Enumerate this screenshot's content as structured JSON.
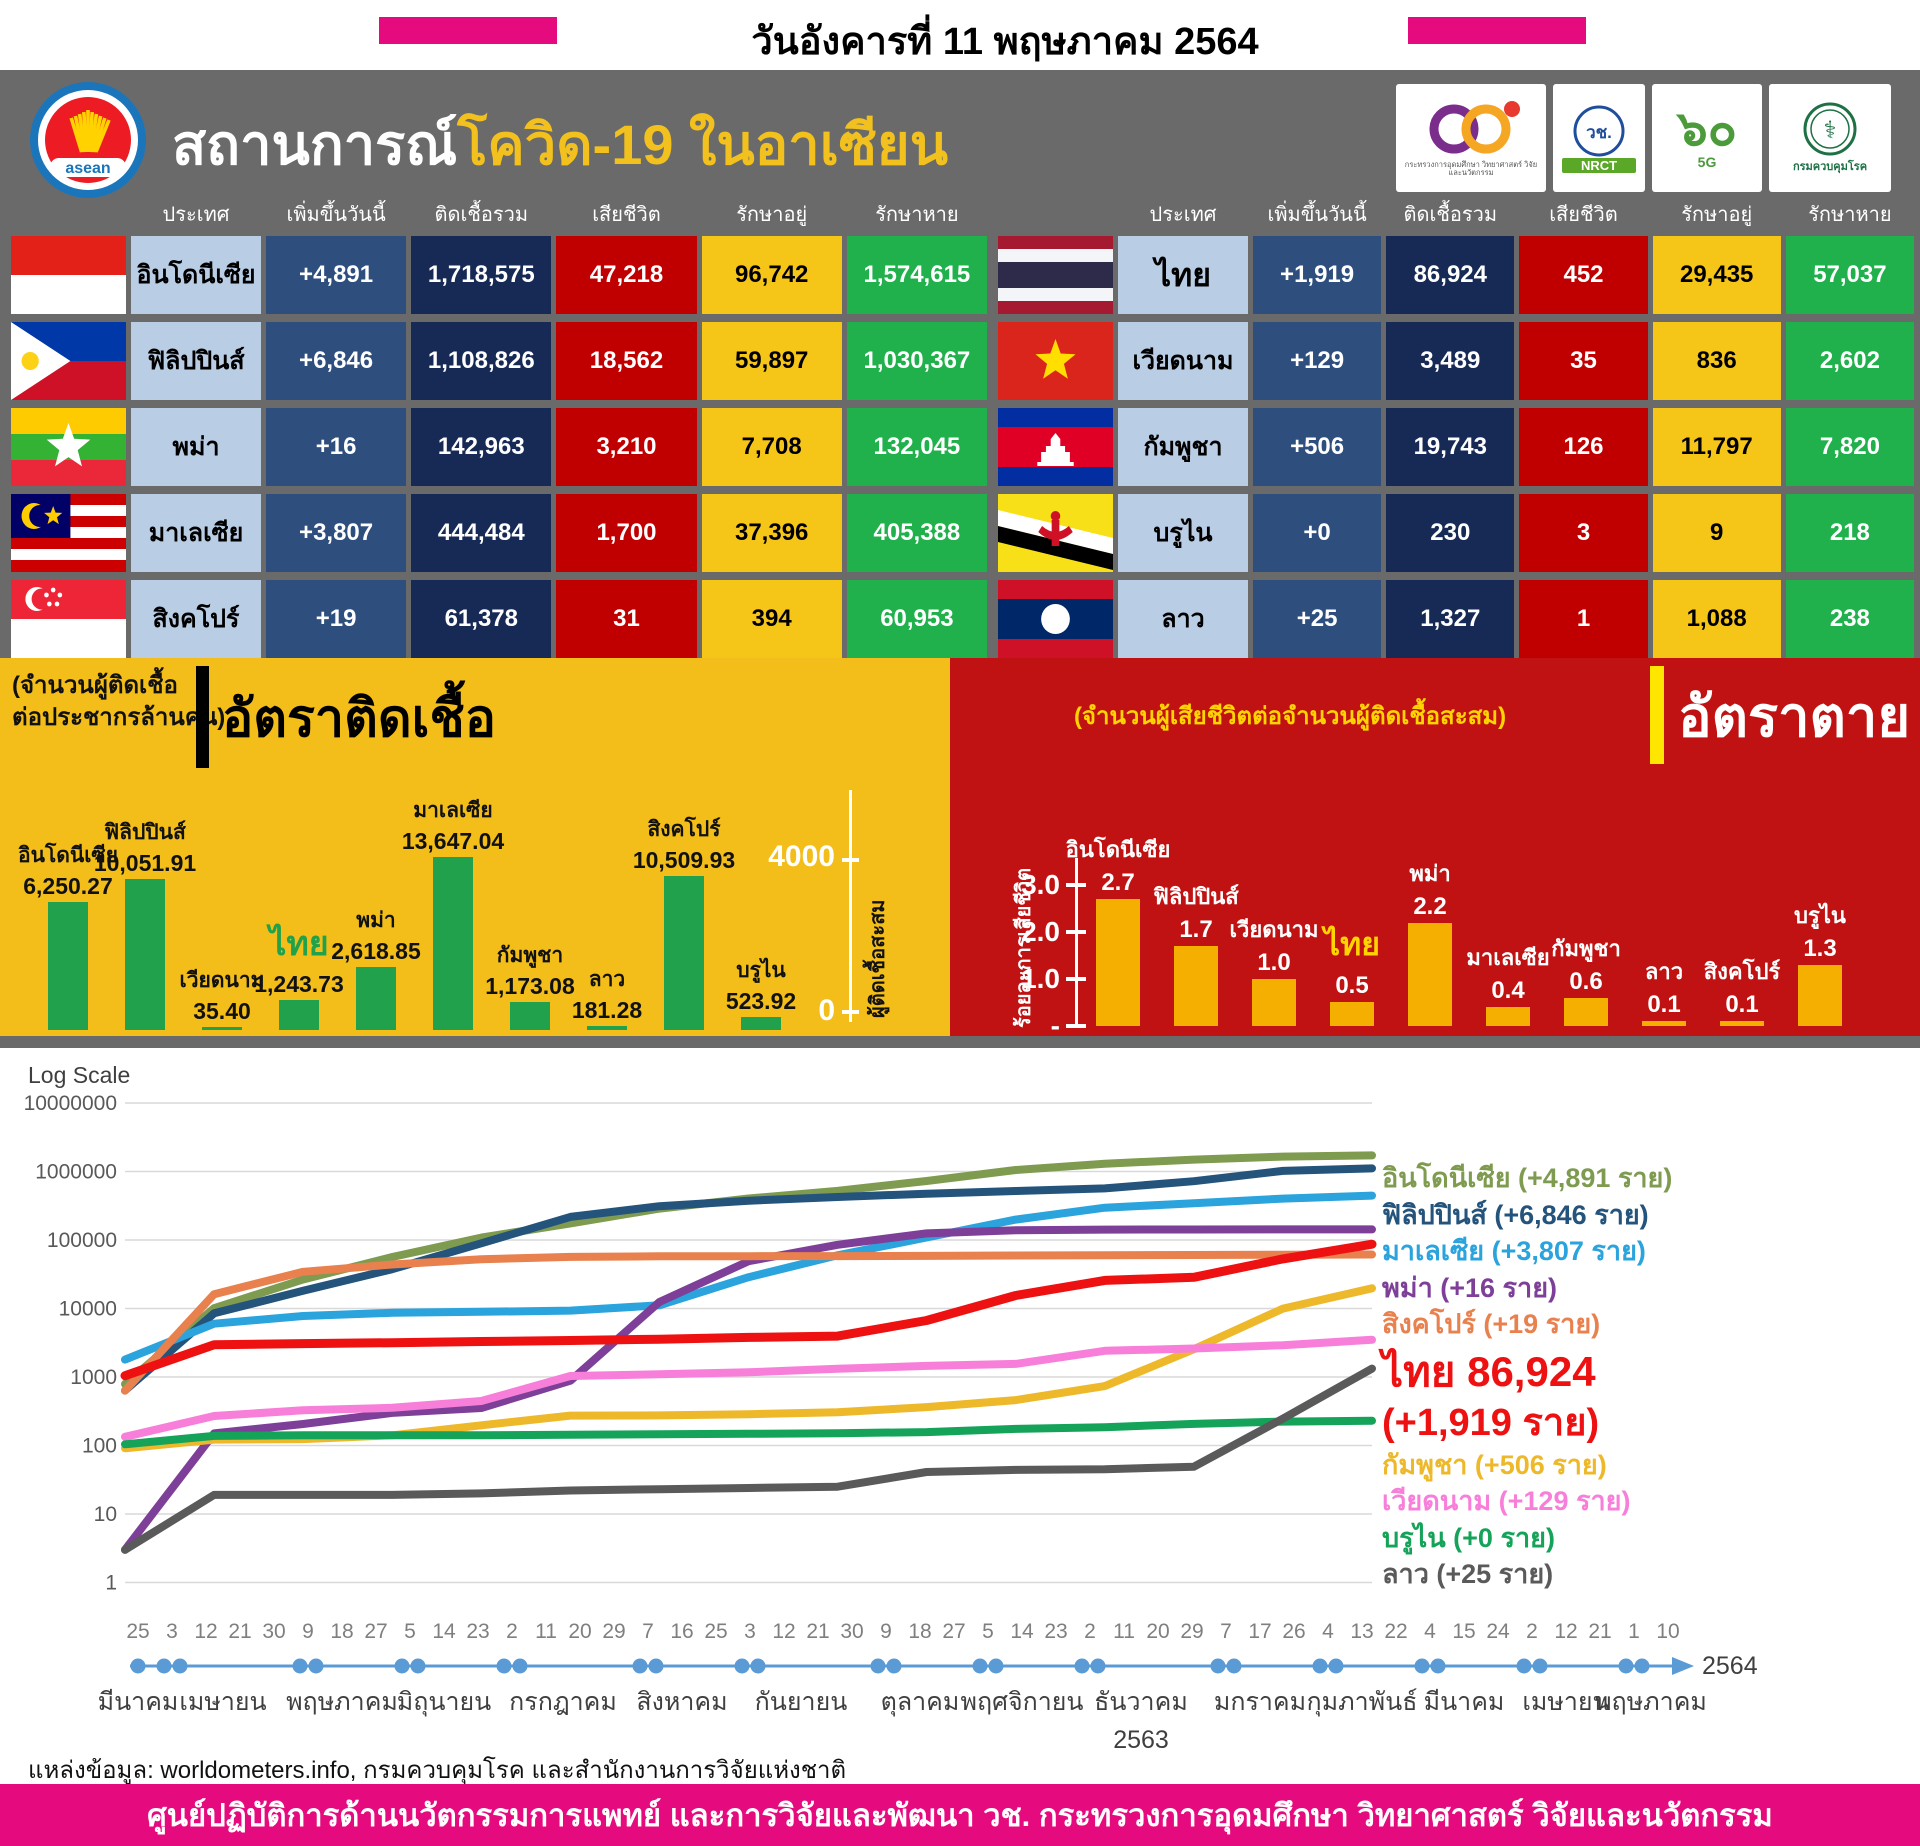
{
  "banner": {
    "date": "วันอังคารที่ 11 พฤษภาคม 2564"
  },
  "header": {
    "title_white": "สถานการณ์",
    "title_accent": "โควิด-19 ในอาเซียน",
    "asean_text": "asean",
    "logos": [
      {
        "id": "mhesi60",
        "title": "60",
        "caption": "กระทรวงการอุดมศึกษา วิทยาศาสตร์ วิจัยและนวัตกรรม"
      },
      {
        "id": "nrct",
        "title": "วช.",
        "caption": "NRCT"
      },
      {
        "id": "sixty5g",
        "title": "๖๐",
        "caption": "5G"
      },
      {
        "id": "moph",
        "title": "⚕",
        "caption": "กรมควบคุมโรค"
      }
    ]
  },
  "table": {
    "columns": [
      "ประเทศ",
      "เพิ่มขึ้นวันนี้",
      "ติดเชื้อรวม",
      "เสียชีวิต",
      "รักษาอยู่",
      "รักษาหาย"
    ],
    "left": [
      {
        "flag": "indonesia",
        "country": "อินโดนีเซีย",
        "new_today": "+4,891",
        "total": "1,718,575",
        "deaths": "47,218",
        "active": "96,742",
        "recovered": "1,574,615"
      },
      {
        "flag": "philippines",
        "country": "ฟิลิปปินส์",
        "new_today": "+6,846",
        "total": "1,108,826",
        "deaths": "18,562",
        "active": "59,897",
        "recovered": "1,030,367"
      },
      {
        "flag": "myanmar",
        "country": "พม่า",
        "new_today": "+16",
        "total": "142,963",
        "deaths": "3,210",
        "active": "7,708",
        "recovered": "132,045"
      },
      {
        "flag": "malaysia",
        "country": "มาเลเซีย",
        "new_today": "+3,807",
        "total": "444,484",
        "deaths": "1,700",
        "active": "37,396",
        "recovered": "405,388"
      },
      {
        "flag": "singapore",
        "country": "สิงคโปร์",
        "new_today": "+19",
        "total": "61,378",
        "deaths": "31",
        "active": "394",
        "recovered": "60,953"
      }
    ],
    "right": [
      {
        "flag": "thailand",
        "country": "ไทย",
        "big": true,
        "new_today": "+1,919",
        "total": "86,924",
        "deaths": "452",
        "active": "29,435",
        "recovered": "57,037"
      },
      {
        "flag": "vietnam",
        "country": "เวียดนาม",
        "new_today": "+129",
        "total": "3,489",
        "deaths": "35",
        "active": "836",
        "recovered": "2,602"
      },
      {
        "flag": "cambodia",
        "country": "กัมพูชา",
        "new_today": "+506",
        "total": "19,743",
        "deaths": "126",
        "active": "11,797",
        "recovered": "7,820"
      },
      {
        "flag": "brunei",
        "country": "บรูไน",
        "new_today": "+0",
        "total": "230",
        "deaths": "3",
        "active": "9",
        "recovered": "218"
      },
      {
        "flag": "laos",
        "country": "ลาว",
        "new_today": "+25",
        "total": "1,327",
        "deaths": "1",
        "active": "1,088",
        "recovered": "238"
      }
    ]
  },
  "chart_data": [
    {
      "type": "bar",
      "title": "อัตราติดเชื้อ",
      "subtitle": "(จำนวนผู้ติดเชื้อต่อประชากรล้านคน)",
      "subtitle_lines": [
        "(จำนวนผู้ติดเชื้อ",
        "ต่อประชากรล้านคน)"
      ],
      "categories": [
        "อินโดนีเซีย",
        "ฟิลิปปินส์",
        "เวียดนาม",
        "ไทย",
        "พม่า",
        "มาเลเซีย",
        "กัมพูชา",
        "ลาว",
        "สิงคโปร์",
        "บรูไน"
      ],
      "values": [
        6250.27,
        10051.91,
        35.4,
        1243.73,
        2618.85,
        13647.04,
        1173.08,
        181.28,
        10509.93,
        523.92
      ],
      "labels": [
        "6,250.27",
        "10,051.91",
        "35.40",
        "1,243.73",
        "2,618.85",
        "13,647.04",
        "1,173.08",
        "181.28",
        "10,509.93",
        "523.92"
      ],
      "highlight_category": "ไทย",
      "bar_color": "#21A14B",
      "background": "#F3BE19",
      "secondary_axis": {
        "ticks": [
          "4000",
          "0"
        ],
        "label": "ผู้ติดเชื้อสะสม"
      }
    },
    {
      "type": "bar",
      "title": "อัตราตาย",
      "subtitle": "(จำนวนผู้เสียชีวิตต่อจำนวนผู้ติดเชื้อสะสม)",
      "ylabel": "ร้อยละการเสียชีวิต",
      "yticks": [
        "3.0",
        "2.0",
        "1.0",
        "-"
      ],
      "ylim": [
        0,
        3.5
      ],
      "categories": [
        "อินโดนีเซีย",
        "ฟิลิปปินส์",
        "เวียดนาม",
        "ไทย",
        "พม่า",
        "มาเลเซีย",
        "กัมพูชา",
        "ลาว",
        "สิงคโปร์",
        "บรูไน"
      ],
      "values": [
        2.7,
        1.7,
        1.0,
        0.5,
        2.2,
        0.4,
        0.6,
        0.1,
        0.1,
        1.3
      ],
      "labels": [
        "2.7",
        "1.7",
        "1.0",
        "0.5",
        "2.2",
        "0.4",
        "0.6",
        "0.1",
        "0.1",
        "1.3"
      ],
      "highlight_category": "ไทย",
      "bar_color": "#F4AF00",
      "background": "#C01212"
    },
    {
      "type": "line",
      "title": "Log Scale",
      "y_scale": "log",
      "ylim": [
        1,
        10000000
      ],
      "y_ticks": [
        "10000000",
        "1000000",
        "100000",
        "10000",
        "1000",
        "100",
        "10",
        "1"
      ],
      "x_day_ticks": [
        "25",
        "3",
        "12",
        "21",
        "30",
        "9",
        "18",
        "27",
        "5",
        "14",
        "23",
        "2",
        "11",
        "20",
        "29",
        "7",
        "16",
        "25",
        "3",
        "12",
        "21",
        "30",
        "9",
        "18",
        "27",
        "5",
        "14",
        "23",
        "2",
        "11",
        "20",
        "29",
        "7",
        "17",
        "26",
        "4",
        "13",
        "22",
        "4",
        "15",
        "24",
        "2",
        "12",
        "21",
        "1",
        "10"
      ],
      "months": [
        {
          "label": "มีนาคม",
          "from": 0,
          "to": 0
        },
        {
          "label": "เมษายน",
          "from": 1,
          "to": 4
        },
        {
          "label": "พฤษภาคม",
          "from": 5,
          "to": 7
        },
        {
          "label": "มิถุนายน",
          "from": 8,
          "to": 10
        },
        {
          "label": "กรกฎาคม",
          "from": 11,
          "to": 14
        },
        {
          "label": "สิงหาคม",
          "from": 15,
          "to": 17
        },
        {
          "label": "กันยายน",
          "from": 18,
          "to": 21
        },
        {
          "label": "ตุลาคม",
          "from": 22,
          "to": 24
        },
        {
          "label": "พฤศจิกายน",
          "from": 25,
          "to": 27
        },
        {
          "label": "ธันวาคม",
          "from": 28,
          "to": 31,
          "year": "2563"
        },
        {
          "label": "มกราคม",
          "from": 32,
          "to": 34
        },
        {
          "label": "กุมภาพันธ์",
          "from": 35,
          "to": 37
        },
        {
          "label": "มีนาคม",
          "from": 38,
          "to": 40
        },
        {
          "label": "เมษายน",
          "from": 41,
          "to": 43
        },
        {
          "label": "พฤษภาคม",
          "from": 44,
          "to": 45
        }
      ],
      "year_end": "2564",
      "series": [
        {
          "name": "อินโดนีเซีย",
          "color": "#7E9B50",
          "legend": "อินโดนีเซีย (+4,891  ราย)",
          "values": [
            790,
            10100,
            26500,
            56400,
            108400,
            174800,
            287000,
            404000,
            522600,
            727000,
            1051000,
            1298000,
            1492000,
            1651000,
            1718575
          ]
        },
        {
          "name": "ฟิลิปปินส์",
          "color": "#24537B",
          "legend": "ฟิลิปปินส์ (+6,846 ราย)",
          "values": [
            636,
            8500,
            18100,
            37500,
            89400,
            217400,
            311700,
            375200,
            424300,
            474000,
            519600,
            566400,
            721900,
            1020000,
            1108826
          ]
        },
        {
          "name": "มาเลเซีย",
          "color": "#2BA3DC",
          "legend": "มาเลเซีย (+3,807 ราย)",
          "values": [
            1796,
            6002,
            7762,
            8640,
            8964,
            9306,
            11135,
            28640,
            59817,
            108615,
            198208,
            295951,
            342885,
            401593,
            444484
          ]
        },
        {
          "name": "พม่า",
          "color": "#7D3F98",
          "legend": "พม่า (+16 ราย)",
          "values": [
            3,
            150,
            206,
            299,
            353,
            882,
            12425,
            49072,
            85205,
            124630,
            138368,
            141841,
            142466,
            142800,
            142963
          ]
        },
        {
          "name": "สิงคโปร์",
          "color": "#E8814D",
          "legend": "สิงคโปร์ (+19 ราย)",
          "values": [
            631,
            16169,
            34366,
            43907,
            52512,
            56717,
            57784,
            57994,
            58183,
            58569,
            59425,
            59925,
            60347,
            61051,
            61378
          ]
        },
        {
          "name": "ไทย",
          "color": "#EE1111",
          "legend": [
            "ไทย 86,924",
            "(+1,919 ราย)"
          ],
          "legend_big": true,
          "values": [
            1045,
            2954,
            3077,
            3171,
            3298,
            3410,
            3564,
            3780,
            3961,
            6690,
            15465,
            25692,
            28577,
            53022,
            86924
          ]
        },
        {
          "name": "กัมพูชา",
          "color": "#EDB829",
          "legend": "กัมพูชา (+506 ราย)",
          "values": [
            91,
            122,
            124,
            141,
            197,
            273,
            275,
            286,
            306,
            363,
            460,
            737,
            2546,
            9975,
            19743
          ]
        },
        {
          "name": "เวียดนาม",
          "color": "#F77FD9",
          "legend": "เวียดนาม (+129 ราย)",
          "values": [
            134,
            270,
            327,
            355,
            446,
            1034,
            1094,
            1173,
            1316,
            1454,
            1551,
            2412,
            2603,
            2910,
            3489
          ]
        },
        {
          "name": "บรูไน",
          "color": "#14A359",
          "legend": "บรูไน (+0 ราย)",
          "values": [
            104,
            138,
            141,
            141,
            141,
            144,
            146,
            148,
            151,
            157,
            175,
            185,
            207,
            223,
            230
          ]
        },
        {
          "name": "ลาว",
          "color": "#5A5A5A",
          "legend": "ลาว (+25 ราย)",
          "values": [
            3,
            19,
            19,
            19,
            20,
            22,
            23,
            24,
            25,
            41,
            44,
            45,
            49,
            247,
            1327
          ]
        }
      ]
    }
  ],
  "footer": {
    "source": "แหล่งข้อมูล: worldometers.info, กรมควบคุมโรค และสำนักงานการวิจัยแห่งชาติ",
    "banner": "ศูนย์ปฏิบัติการด้านนวัตกรรมการแพทย์ และการวิจัยและพัฒนา  วช.   กระทรวงการอุดมศึกษา วิทยาศาสตร์ วิจัยและนวัตกรรม"
  }
}
